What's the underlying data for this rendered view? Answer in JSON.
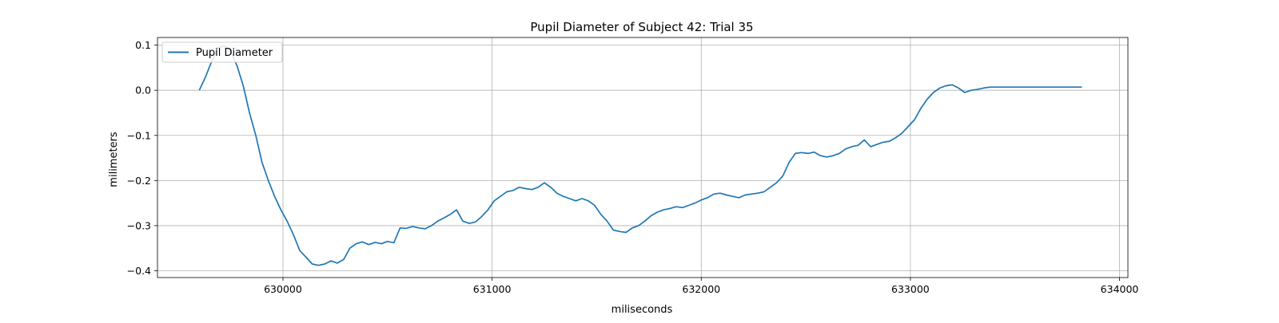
{
  "chart_data": {
    "type": "line",
    "title": "Pupil Diameter of Subject 42: Trial 35",
    "xlabel": "miliseconds",
    "ylabel": "milimeters",
    "xlim": [
      629400,
      634040
    ],
    "ylim": [
      -0.415,
      0.117
    ],
    "xticks": [
      630000,
      631000,
      632000,
      633000,
      634000
    ],
    "yticks": [
      0.1,
      0.0,
      -0.1,
      -0.2,
      -0.3,
      -0.4
    ],
    "xtick_labels": [
      "630000",
      "631000",
      "632000",
      "633000",
      "634000"
    ],
    "ytick_labels": [
      "0.1",
      "0.0",
      "−0.1",
      "−0.2",
      "−0.3",
      "−0.4"
    ],
    "grid": true,
    "legend_position": "top-left",
    "series": [
      {
        "name": "Pupil Diameter",
        "color": "#1f77b4",
        "x": [
          629600,
          629630,
          629660,
          629690,
          629720,
          629750,
          629780,
          629810,
          629840,
          629870,
          629900,
          629930,
          629960,
          629990,
          630020,
          630050,
          630080,
          630110,
          630140,
          630170,
          630200,
          630230,
          630260,
          630290,
          630320,
          630350,
          630380,
          630410,
          630440,
          630470,
          630500,
          630530,
          630560,
          630590,
          630620,
          630650,
          630680,
          630710,
          630740,
          630770,
          630800,
          630830,
          630860,
          630890,
          630920,
          630950,
          630980,
          631010,
          631040,
          631070,
          631100,
          631130,
          631160,
          631190,
          631220,
          631250,
          631280,
          631310,
          631340,
          631370,
          631400,
          631430,
          631460,
          631490,
          631520,
          631550,
          631580,
          631610,
          631640,
          631670,
          631700,
          631730,
          631760,
          631790,
          631820,
          631850,
          631880,
          631910,
          631940,
          631970,
          632000,
          632030,
          632060,
          632090,
          632120,
          632150,
          632180,
          632210,
          632240,
          632270,
          632300,
          632330,
          632360,
          632390,
          632420,
          632450,
          632480,
          632510,
          632540,
          632570,
          632600,
          632630,
          632660,
          632690,
          632720,
          632750,
          632780,
          632810,
          632840,
          632870,
          632900,
          632930,
          632960,
          632990,
          633020,
          633050,
          633080,
          633110,
          633140,
          633170,
          633200,
          633230,
          633260,
          633290,
          633320,
          633350,
          633380,
          633410,
          633440,
          633470,
          633500,
          633530,
          633560,
          633590,
          633620,
          633650,
          633680,
          633710,
          633740,
          633770,
          633800,
          633820
        ],
        "y": [
          0.0,
          0.03,
          0.065,
          0.095,
          0.098,
          0.085,
          0.055,
          0.01,
          -0.05,
          -0.1,
          -0.16,
          -0.2,
          -0.235,
          -0.265,
          -0.29,
          -0.32,
          -0.355,
          -0.37,
          -0.385,
          -0.388,
          -0.385,
          -0.378,
          -0.383,
          -0.375,
          -0.35,
          -0.34,
          -0.336,
          -0.342,
          -0.337,
          -0.34,
          -0.335,
          -0.338,
          -0.305,
          -0.306,
          -0.302,
          -0.305,
          -0.307,
          -0.3,
          -0.29,
          -0.283,
          -0.275,
          -0.265,
          -0.29,
          -0.295,
          -0.292,
          -0.28,
          -0.265,
          -0.245,
          -0.235,
          -0.225,
          -0.222,
          -0.215,
          -0.218,
          -0.22,
          -0.215,
          -0.205,
          -0.215,
          -0.228,
          -0.235,
          -0.24,
          -0.245,
          -0.24,
          -0.245,
          -0.255,
          -0.275,
          -0.29,
          -0.31,
          -0.313,
          -0.315,
          -0.305,
          -0.3,
          -0.29,
          -0.278,
          -0.27,
          -0.265,
          -0.262,
          -0.258,
          -0.26,
          -0.255,
          -0.25,
          -0.243,
          -0.238,
          -0.23,
          -0.228,
          -0.232,
          -0.235,
          -0.238,
          -0.232,
          -0.23,
          -0.228,
          -0.225,
          -0.215,
          -0.205,
          -0.19,
          -0.16,
          -0.14,
          -0.138,
          -0.14,
          -0.137,
          -0.145,
          -0.148,
          -0.145,
          -0.14,
          -0.13,
          -0.125,
          -0.122,
          -0.11,
          -0.125,
          -0.12,
          -0.115,
          -0.113,
          -0.105,
          -0.095,
          -0.08,
          -0.065,
          -0.04,
          -0.02,
          -0.005,
          0.005,
          0.01,
          0.012,
          0.005,
          -0.005,
          0.0,
          0.002,
          0.005,
          0.007,
          0.007,
          0.007,
          0.007,
          0.007,
          0.007,
          0.007,
          0.007,
          0.007,
          0.007,
          0.007,
          0.007,
          0.007,
          0.007,
          0.007,
          0.007
        ]
      }
    ]
  }
}
